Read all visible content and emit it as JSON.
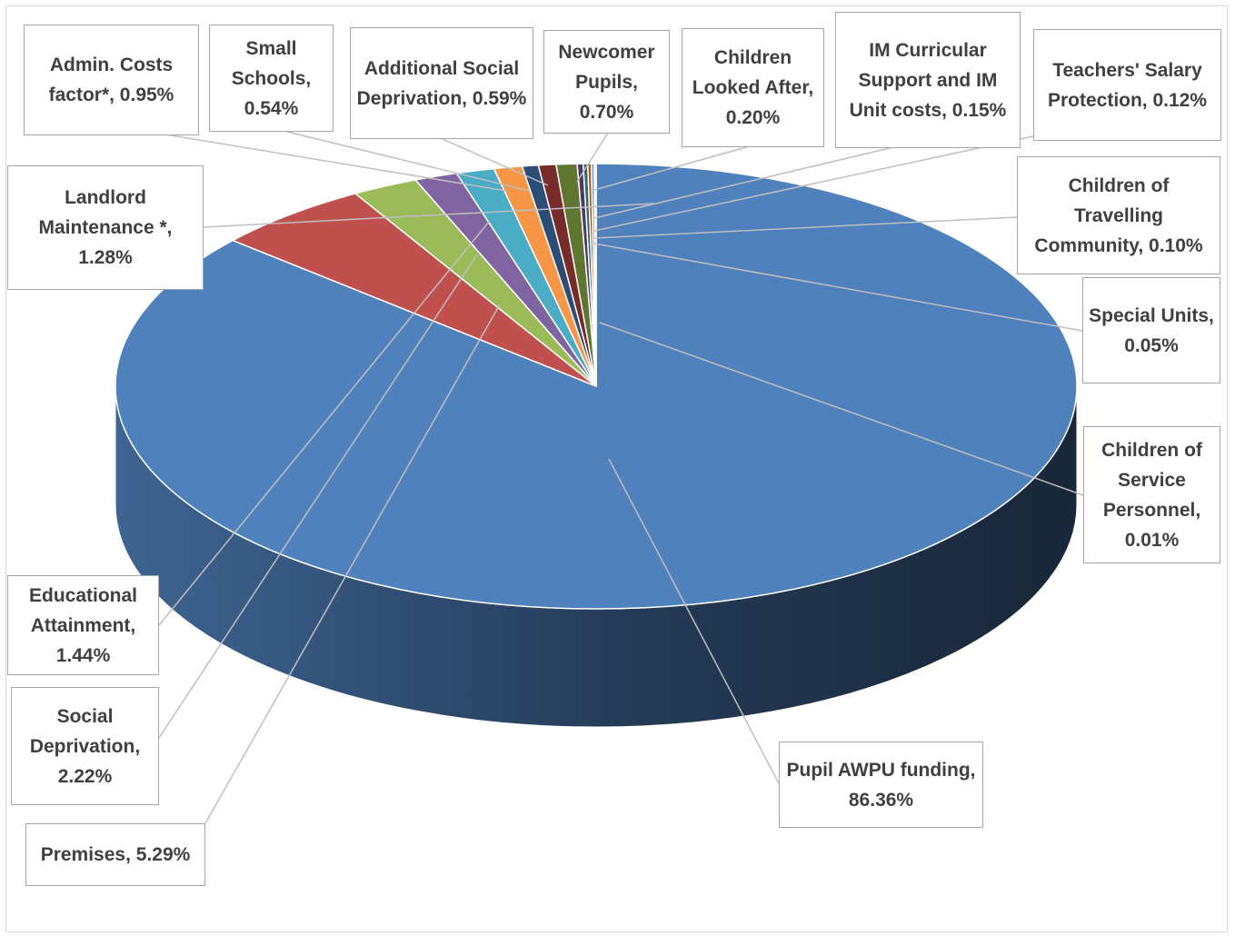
{
  "chart_data": {
    "type": "pie",
    "style": "3d",
    "title": "",
    "slices": [
      {
        "label": "Pupil AWPU funding, 86.36%",
        "name": "Pupil AWPU funding",
        "value": 86.36,
        "color": "#4f81bd"
      },
      {
        "label": "Premises, 5.29%",
        "name": "Premises",
        "value": 5.29,
        "color": "#c0504d"
      },
      {
        "label": "Social Deprivation, 2.22%",
        "name": "Social Deprivation",
        "value": 2.22,
        "color": "#9bbb59"
      },
      {
        "label": "Educational Attainment, 1.44%",
        "name": "Educational Attainment",
        "value": 1.44,
        "color": "#8064a2"
      },
      {
        "label": "Landlord Maintenance *, 1.28%",
        "name": "Landlord Maintenance *",
        "value": 1.28,
        "color": "#4bacc6"
      },
      {
        "label": "Admin. Costs factor*, 0.95%",
        "name": "Admin. Costs factor*",
        "value": 0.95,
        "color": "#f79646"
      },
      {
        "label": "Small Schools, 0.54%",
        "name": "Small Schools",
        "value": 0.54,
        "color": "#2c4d75"
      },
      {
        "label": "Additional Social Deprivation, 0.59%",
        "name": "Additional Social Deprivation",
        "value": 0.59,
        "color": "#772c2a"
      },
      {
        "label": "Newcomer Pupils, 0.70%",
        "name": "Newcomer Pupils",
        "value": 0.7,
        "color": "#5f7530"
      },
      {
        "label": "Children Looked After, 0.20%",
        "name": "Children Looked After",
        "value": 0.2,
        "color": "#4d3b62"
      },
      {
        "label": "IM Curricular Support and IM Unit costs, 0.15%",
        "name": "IM Curricular Support and IM Unit costs",
        "value": 0.15,
        "color": "#276a7c"
      },
      {
        "label": "Teachers' Salary Protection, 0.12%",
        "name": "Teachers' Salary Protection",
        "value": 0.12,
        "color": "#b65708"
      },
      {
        "label": "Children of Travelling Community, 0.10%",
        "name": "Children of Travelling Community",
        "value": 0.1,
        "color": "#729aca"
      },
      {
        "label": "Special Units, 0.05%",
        "name": "Special Units",
        "value": 0.05,
        "color": "#d3756f"
      },
      {
        "label": "Children of Service Personnel, 0.01%",
        "name": "Children of Service Personnel",
        "value": 0.01,
        "color": "#afc97a"
      }
    ]
  }
}
